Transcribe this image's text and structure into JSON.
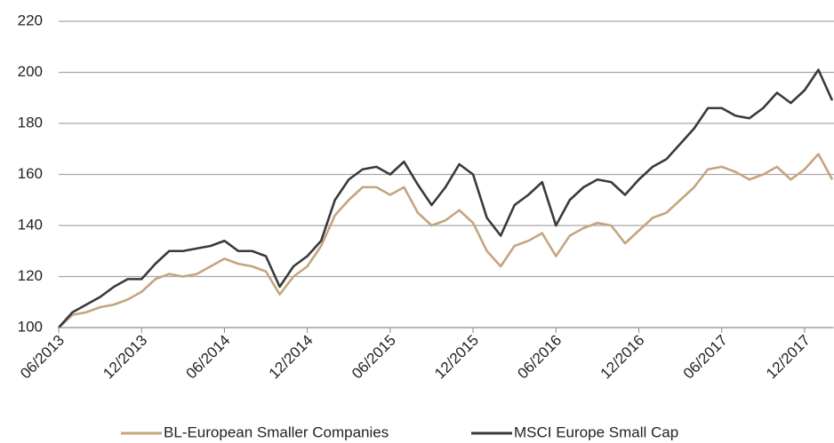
{
  "chart_data": {
    "type": "line",
    "x": [
      "06/2013",
      "07/2013",
      "08/2013",
      "09/2013",
      "10/2013",
      "11/2013",
      "12/2013",
      "01/2014",
      "02/2014",
      "03/2014",
      "04/2014",
      "05/2014",
      "06/2014",
      "07/2014",
      "08/2014",
      "09/2014",
      "10/2014",
      "11/2014",
      "12/2014",
      "01/2015",
      "02/2015",
      "03/2015",
      "04/2015",
      "05/2015",
      "06/2015",
      "07/2015",
      "08/2015",
      "09/2015",
      "10/2015",
      "11/2015",
      "12/2015",
      "01/2016",
      "02/2016",
      "03/2016",
      "04/2016",
      "05/2016",
      "06/2016",
      "07/2016",
      "08/2016",
      "09/2016",
      "10/2016",
      "11/2016",
      "12/2016",
      "01/2017",
      "02/2017",
      "03/2017",
      "04/2017",
      "05/2017",
      "06/2017",
      "07/2017",
      "08/2017",
      "09/2017",
      "10/2017",
      "11/2017",
      "12/2017",
      "01/2018",
      "02/2018"
    ],
    "xticks": [
      "06/2013",
      "12/2013",
      "06/2014",
      "12/2014",
      "06/2015",
      "12/2015",
      "06/2016",
      "12/2016",
      "06/2017",
      "12/2017"
    ],
    "series": [
      {
        "name": "BL-European Smaller Companies",
        "color": "#c4a57f",
        "values": [
          100,
          105,
          106,
          108,
          109,
          111,
          114,
          119,
          121,
          120,
          121,
          124,
          127,
          125,
          124,
          122,
          113,
          120,
          124,
          132,
          144,
          150,
          155,
          155,
          152,
          155,
          145,
          140,
          142,
          146,
          141,
          130,
          124,
          132,
          134,
          137,
          128,
          136,
          139,
          141,
          140,
          133,
          138,
          143,
          145,
          150,
          155,
          162,
          163,
          161,
          158,
          160,
          163,
          158,
          162,
          168,
          158
        ]
      },
      {
        "name": "MSCI Europe Small Cap",
        "color": "#3a3a3a",
        "values": [
          100,
          106,
          109,
          112,
          116,
          119,
          119,
          125,
          130,
          130,
          131,
          132,
          134,
          130,
          130,
          128,
          116,
          124,
          128,
          134,
          150,
          158,
          162,
          163,
          160,
          165,
          156,
          148,
          155,
          164,
          160,
          143,
          136,
          148,
          152,
          157,
          140,
          150,
          155,
          158,
          157,
          152,
          158,
          163,
          166,
          172,
          178,
          186,
          186,
          183,
          182,
          186,
          192,
          188,
          193,
          201,
          189
        ]
      }
    ],
    "ylim": [
      100,
      220
    ],
    "yticks": [
      100,
      120,
      140,
      160,
      180,
      200,
      220
    ],
    "grid": true,
    "legend": "bottom"
  }
}
